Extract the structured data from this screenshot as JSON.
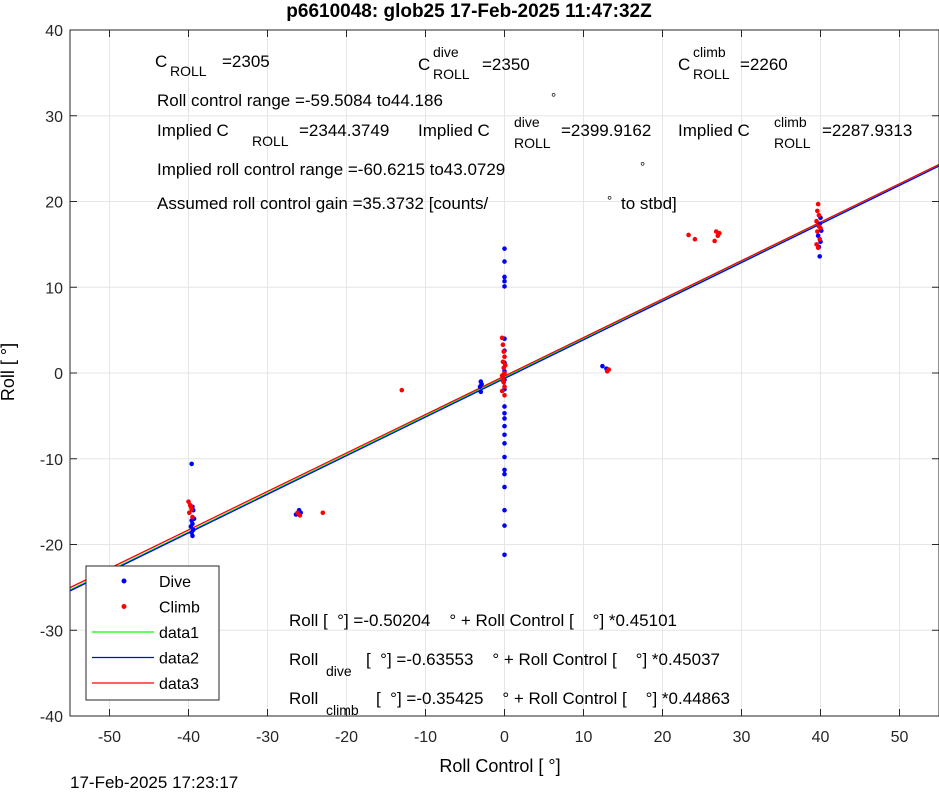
{
  "chart_data": {
    "type": "scatter",
    "title": "p6610048: glob25 17-Feb-2025 11:47:32Z",
    "xlabel": "Roll Control [   °]",
    "ylabel": "Roll [  °]",
    "xlim": [
      -55,
      55
    ],
    "ylim": [
      -40,
      40
    ],
    "xticks": [
      -50,
      -40,
      -30,
      -20,
      -10,
      0,
      10,
      20,
      30,
      40,
      50
    ],
    "yticks": [
      -40,
      -30,
      -20,
      -10,
      0,
      10,
      20,
      30,
      40
    ],
    "grid": true,
    "legend_position": "bottom-left",
    "annotations": {
      "c_roll": "C",
      "c_roll_sub": "ROLL",
      "c_roll_val": "=2305",
      "c_dive_sup": "dive",
      "c_dive_val": "=2350",
      "c_climb_sup": "climb",
      "c_climb_val": "=2260",
      "range": "Roll control range =-59.5084 to44.186",
      "implied_label": "Implied C",
      "implied_val": "=2344.3749",
      "implied_dive_val": "=2399.9162",
      "implied_climb_val": "=2287.9313",
      "implied_range": "Implied roll control range =-60.6215 to43.0729",
      "gain": "Assumed roll control gain =35.3732 [counts/",
      "gain_end": "to stbd]",
      "fit1": "Roll [  °] =-0.50204    ° + Roll Control [    °] *0.45101",
      "fit2_a": "Roll",
      "fit2_sub": "dive",
      "fit2_b": "[  °] =-0.63553    ° + Roll Control [    °] *0.45037",
      "fit3_a": "Roll",
      "fit3_sub": "climb",
      "fit3_b": "[  °] =-0.35425    ° + Roll Control [    °] *0.44863",
      "degree_mark": "°"
    },
    "series": [
      {
        "name": "Dive",
        "kind": "points",
        "color": "#0000ff",
        "points": [
          [
            -39.6,
            -10.6
          ],
          [
            -39.5,
            -15.6
          ],
          [
            -39.4,
            -16.0
          ],
          [
            -39.6,
            -17.2
          ],
          [
            -39.5,
            -17.6
          ],
          [
            -39.7,
            -17.9
          ],
          [
            -39.4,
            -18.3
          ],
          [
            -39.6,
            -18.6
          ],
          [
            -39.5,
            -19.0
          ],
          [
            -39.3,
            -17.0
          ],
          [
            -26.0,
            -16.0
          ],
          [
            -25.8,
            -16.3
          ],
          [
            -26.4,
            -16.5
          ],
          [
            -3.0,
            -1.0
          ],
          [
            -3.1,
            -1.6
          ],
          [
            -3.0,
            -2.2
          ],
          [
            -2.9,
            -1.3
          ],
          [
            0.0,
            14.5
          ],
          [
            0.0,
            13.0
          ],
          [
            0.0,
            11.2
          ],
          [
            0.0,
            10.7
          ],
          [
            0.0,
            10.1
          ],
          [
            0.0,
            4.0
          ],
          [
            0.0,
            2.6
          ],
          [
            0.0,
            1.2
          ],
          [
            0.0,
            0.2
          ],
          [
            0.0,
            -0.8
          ],
          [
            0.0,
            -1.9
          ],
          [
            0.0,
            -3.9
          ],
          [
            0.0,
            -4.7
          ],
          [
            0.0,
            -5.3
          ],
          [
            0.0,
            -6.2
          ],
          [
            0.0,
            -7.2
          ],
          [
            0.0,
            -8.2
          ],
          [
            0.0,
            -9.8
          ],
          [
            0.0,
            -11.3
          ],
          [
            0.0,
            -11.8
          ],
          [
            0.0,
            -13.3
          ],
          [
            0.0,
            -16.0
          ],
          [
            0.0,
            -17.8
          ],
          [
            0.0,
            -21.2
          ],
          [
            12.4,
            0.8
          ],
          [
            12.9,
            0.5
          ],
          [
            39.9,
            13.6
          ],
          [
            39.8,
            14.7
          ],
          [
            40.0,
            15.3
          ],
          [
            39.7,
            16.0
          ],
          [
            40.1,
            16.6
          ],
          [
            39.9,
            17.4
          ],
          [
            40.0,
            18.1
          ]
        ]
      },
      {
        "name": "Climb",
        "kind": "points",
        "color": "#ff0000",
        "points": [
          [
            -40.0,
            -15.0
          ],
          [
            -39.8,
            -15.4
          ],
          [
            -39.6,
            -15.9
          ],
          [
            -39.9,
            -16.3
          ],
          [
            -39.5,
            -16.8
          ],
          [
            -39.7,
            -15.6
          ],
          [
            -25.9,
            -16.6
          ],
          [
            -26.2,
            -16.3
          ],
          [
            -23.0,
            -16.3
          ],
          [
            -13.0,
            -2.0
          ],
          [
            -0.3,
            4.1
          ],
          [
            -0.2,
            3.3
          ],
          [
            -0.1,
            2.5
          ],
          [
            0.0,
            1.9
          ],
          [
            -0.2,
            1.3
          ],
          [
            -0.1,
            0.6
          ],
          [
            0.0,
            0.0
          ],
          [
            -0.2,
            -0.5
          ],
          [
            -0.1,
            -1.1
          ],
          [
            0.0,
            -1.6
          ],
          [
            -0.3,
            -2.1
          ],
          [
            0.0,
            -2.6
          ],
          [
            -0.2,
            -0.9
          ],
          [
            0.1,
            0.9
          ],
          [
            -0.3,
            -0.3
          ],
          [
            13.2,
            0.4
          ],
          [
            13.0,
            0.2
          ],
          [
            23.3,
            16.1
          ],
          [
            24.1,
            15.6
          ],
          [
            26.8,
            16.5
          ],
          [
            27.0,
            16.0
          ],
          [
            26.6,
            15.4
          ],
          [
            27.2,
            16.3
          ],
          [
            39.7,
            19.7
          ],
          [
            39.6,
            18.9
          ],
          [
            39.8,
            18.4
          ],
          [
            39.5,
            17.7
          ],
          [
            39.8,
            17.1
          ],
          [
            39.6,
            16.5
          ],
          [
            39.9,
            15.6
          ],
          [
            39.5,
            15.0
          ],
          [
            39.7,
            14.6
          ],
          [
            40.0,
            16.9
          ]
        ]
      },
      {
        "name": "data1",
        "kind": "line",
        "color": "#00ff00",
        "intercept": -0.50204,
        "slope": 0.45101
      },
      {
        "name": "data2",
        "kind": "line",
        "color": "#0000ff",
        "intercept": -0.63553,
        "slope": 0.45037
      },
      {
        "name": "data3",
        "kind": "line",
        "color": "#ff0000",
        "intercept": -0.35425,
        "slope": 0.44863
      }
    ]
  },
  "footer": {
    "timestamp": "17-Feb-2025 17:23:17"
  }
}
